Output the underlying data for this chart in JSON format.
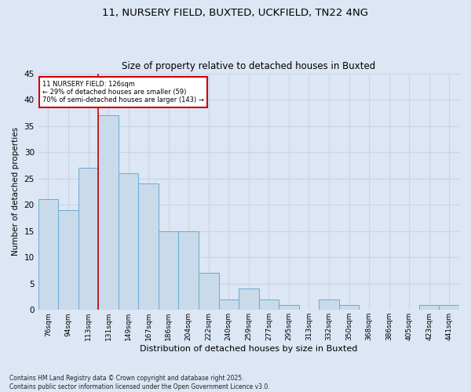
{
  "title1": "11, NURSERY FIELD, BUXTED, UCKFIELD, TN22 4NG",
  "title2": "Size of property relative to detached houses in Buxted",
  "xlabel": "Distribution of detached houses by size in Buxted",
  "ylabel": "Number of detached properties",
  "categories": [
    "76sqm",
    "94sqm",
    "113sqm",
    "131sqm",
    "149sqm",
    "167sqm",
    "186sqm",
    "204sqm",
    "222sqm",
    "240sqm",
    "259sqm",
    "277sqm",
    "295sqm",
    "313sqm",
    "332sqm",
    "350sqm",
    "368sqm",
    "386sqm",
    "405sqm",
    "423sqm",
    "441sqm"
  ],
  "values": [
    21,
    19,
    27,
    37,
    26,
    24,
    15,
    15,
    7,
    2,
    4,
    2,
    1,
    0,
    2,
    1,
    0,
    0,
    0,
    1,
    1
  ],
  "bar_color": "#c9daea",
  "bar_edge_color": "#6aabd2",
  "grid_color": "#c8d4e4",
  "background_color": "#dce6f5",
  "fig_background_color": "#dce6f5",
  "annotation_text": "11 NURSERY FIELD: 126sqm\n← 29% of detached houses are smaller (59)\n70% of semi-detached houses are larger (143) →",
  "annotation_box_color": "#ffffff",
  "annotation_box_edge": "#cc0000",
  "vline_color": "#cc0000",
  "footer": "Contains HM Land Registry data © Crown copyright and database right 2025.\nContains public sector information licensed under the Open Government Licence v3.0.",
  "ylim": [
    0,
    45
  ],
  "yticks": [
    0,
    5,
    10,
    15,
    20,
    25,
    30,
    35,
    40,
    45
  ]
}
